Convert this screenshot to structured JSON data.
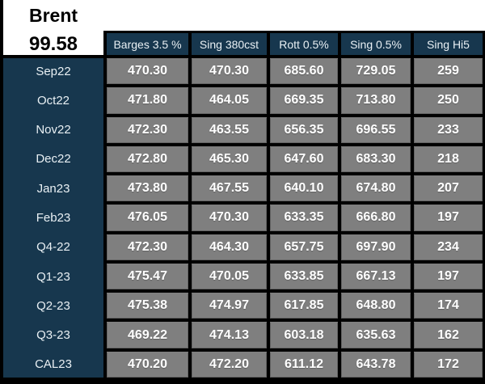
{
  "quote_board": {
    "instrument": "Brent",
    "price": "99.58",
    "columns": [
      "Barges 3.5 %",
      "Sing 380cst",
      "Rott 0.5%",
      "Sing 0.5%",
      "Sing Hi5"
    ],
    "rows": [
      {
        "label": "Sep22",
        "values": [
          "470.30",
          "470.30",
          "685.60",
          "729.05",
          "259"
        ]
      },
      {
        "label": "Oct22",
        "values": [
          "471.80",
          "464.05",
          "669.35",
          "713.80",
          "250"
        ]
      },
      {
        "label": "Nov22",
        "values": [
          "472.30",
          "463.55",
          "656.35",
          "696.55",
          "233"
        ]
      },
      {
        "label": "Dec22",
        "values": [
          "472.80",
          "465.30",
          "647.60",
          "683.30",
          "218"
        ]
      },
      {
        "label": "Jan23",
        "values": [
          "473.80",
          "467.55",
          "640.10",
          "674.80",
          "207"
        ]
      },
      {
        "label": "Feb23",
        "values": [
          "476.05",
          "470.30",
          "633.35",
          "666.80",
          "197"
        ]
      },
      {
        "label": "Q4-22",
        "values": [
          "472.30",
          "464.30",
          "657.75",
          "697.90",
          "234"
        ]
      },
      {
        "label": "Q1-23",
        "values": [
          "475.47",
          "470.05",
          "633.85",
          "667.13",
          "197"
        ]
      },
      {
        "label": "Q2-23",
        "values": [
          "475.38",
          "474.97",
          "617.85",
          "648.80",
          "174"
        ]
      },
      {
        "label": "Q3-23",
        "values": [
          "469.22",
          "474.13",
          "603.18",
          "635.63",
          "162"
        ]
      },
      {
        "label": "CAL23",
        "values": [
          "470.20",
          "472.20",
          "611.12",
          "643.78",
          "172"
        ]
      }
    ],
    "colors": {
      "header_navy": "#17374e",
      "cell_gray": "#7f7f7f",
      "grid_black": "#000000",
      "text_light": "#e9f0f4",
      "title_black": "#000000"
    }
  }
}
